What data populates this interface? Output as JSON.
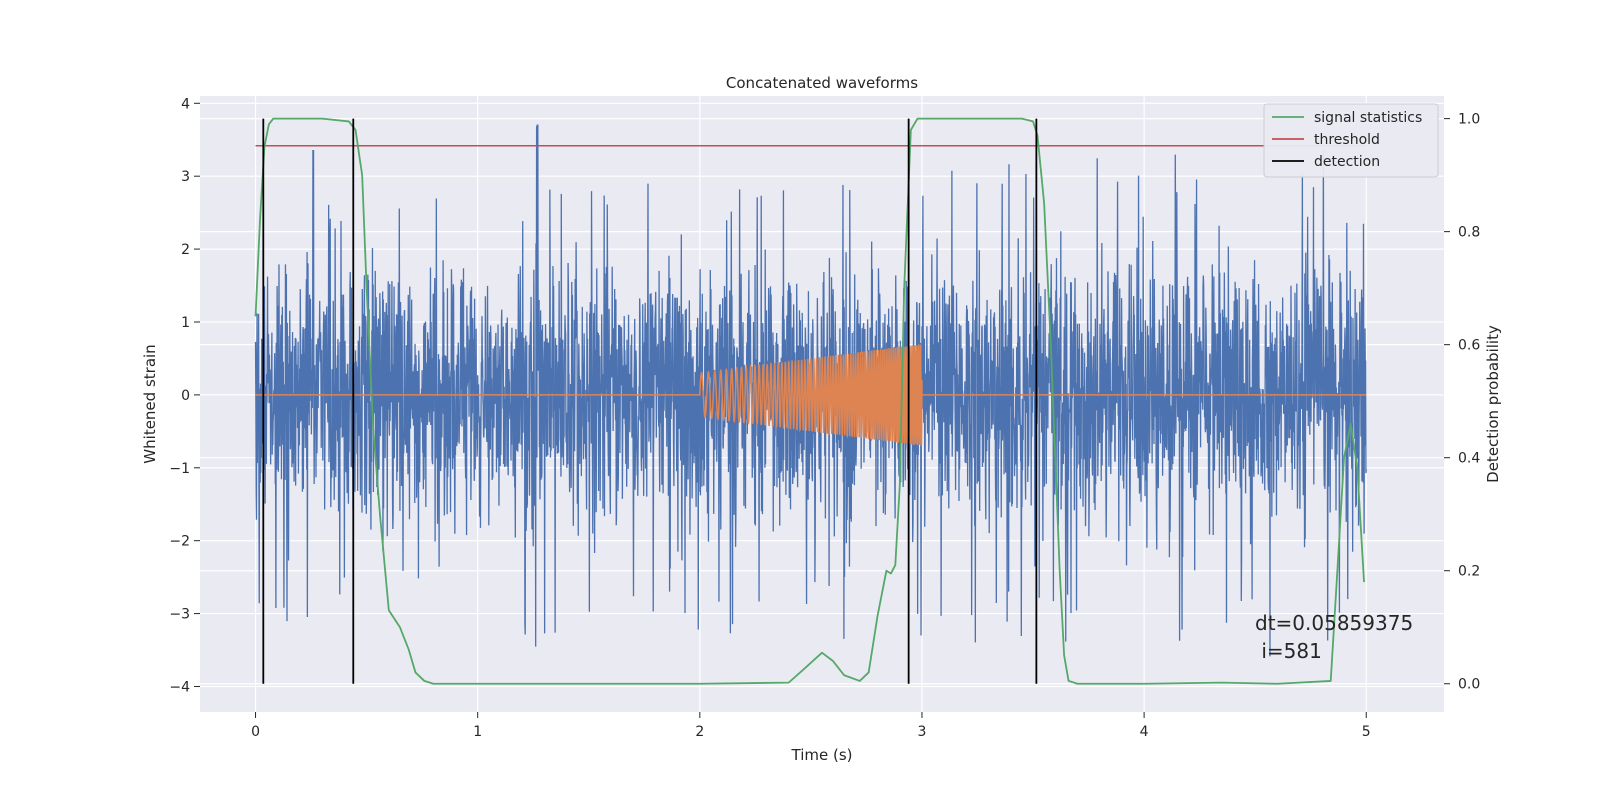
{
  "chart_data": {
    "type": "line",
    "title": "Concatenated waveforms",
    "xlabel": "Time (s)",
    "ylabel": "Whitened strain",
    "ylabel_right": "Detection probability",
    "xlim": [
      -0.25,
      5.35
    ],
    "ylim": [
      -4.35,
      4.1
    ],
    "ylim_right": [
      -0.05,
      1.04
    ],
    "x_ticks": [
      0,
      1,
      2,
      3,
      4,
      5
    ],
    "y_ticks": [
      -4,
      -3,
      -2,
      -1,
      0,
      1,
      2,
      3,
      4
    ],
    "y_ticks_right": [
      0.0,
      0.2,
      0.4,
      0.6,
      0.8,
      1.0
    ],
    "grid": true,
    "legend_position": "top-right",
    "legend": [
      "signal statistics",
      "threshold",
      "detection"
    ],
    "annotation": {
      "line1": "dt=0.05859375",
      "line2": " i=581",
      "x": 4.5,
      "y": -3.35
    },
    "strain_series": {
      "color": "#4c72b0",
      "x_range": [
        0,
        5
      ],
      "envelope": [
        [
          0.0,
          1.9
        ],
        [
          0.05,
          2.2
        ],
        [
          0.1,
          2.6
        ],
        [
          0.3,
          2.1
        ],
        [
          0.5,
          2.0
        ],
        [
          1.0,
          2.2
        ],
        [
          1.27,
          3.7
        ],
        [
          1.5,
          2.2
        ],
        [
          2.0,
          2.4
        ],
        [
          2.5,
          2.6
        ],
        [
          2.9,
          3.0
        ],
        [
          3.0,
          2.5
        ],
        [
          3.5,
          2.6
        ],
        [
          4.0,
          2.9
        ],
        [
          4.5,
          2.8
        ],
        [
          4.8,
          2.8
        ],
        [
          5.0,
          2.0
        ]
      ]
    },
    "chirp_series": {
      "color": "#dd8452",
      "start": 2.0,
      "end": 3.0,
      "amp_start": 0.3,
      "amp_end": 0.7,
      "f_start": 30,
      "f_end": 120
    },
    "signal_statistics": {
      "name": "signal statistics",
      "color": "#55a868",
      "x": [
        0.0,
        0.02,
        0.04,
        0.06,
        0.08,
        0.1,
        0.15,
        0.3,
        0.42,
        0.45,
        0.48,
        0.5,
        0.53,
        0.56,
        0.6,
        0.65,
        0.69,
        0.72,
        0.76,
        0.8,
        1.0,
        1.5,
        2.0,
        2.4,
        2.48,
        2.55,
        2.6,
        2.65,
        2.72,
        2.76,
        2.8,
        2.84,
        2.86,
        2.88,
        2.9,
        2.92,
        2.95,
        2.98,
        3.0,
        3.2,
        3.45,
        3.5,
        3.52,
        3.55,
        3.58,
        3.6,
        3.62,
        3.64,
        3.66,
        3.7,
        4.0,
        4.35,
        4.6,
        4.84,
        4.87,
        4.9,
        4.93,
        4.96,
        4.99
      ],
      "y": [
        0.65,
        0.82,
        0.95,
        0.99,
        1.0,
        1.0,
        1.0,
        1.0,
        0.995,
        0.98,
        0.9,
        0.7,
        0.45,
        0.3,
        0.13,
        0.1,
        0.06,
        0.02,
        0.005,
        0.0,
        0.0,
        0.0,
        0.0,
        0.002,
        0.03,
        0.055,
        0.04,
        0.015,
        0.005,
        0.02,
        0.12,
        0.2,
        0.195,
        0.21,
        0.35,
        0.7,
        0.98,
        1.0,
        1.0,
        1.0,
        1.0,
        0.995,
        0.97,
        0.85,
        0.6,
        0.4,
        0.2,
        0.05,
        0.005,
        0.0,
        0.0,
        0.002,
        0.0,
        0.005,
        0.2,
        0.4,
        0.46,
        0.38,
        0.18
      ]
    },
    "threshold": {
      "name": "threshold",
      "color": "#c44e52",
      "value": 0.952,
      "x_range": [
        0,
        5
      ]
    },
    "detections": {
      "name": "detection",
      "color": "#000000",
      "x": [
        0.035,
        0.44,
        2.94,
        3.515
      ],
      "y_range": [
        0.0,
        1.0
      ]
    }
  }
}
